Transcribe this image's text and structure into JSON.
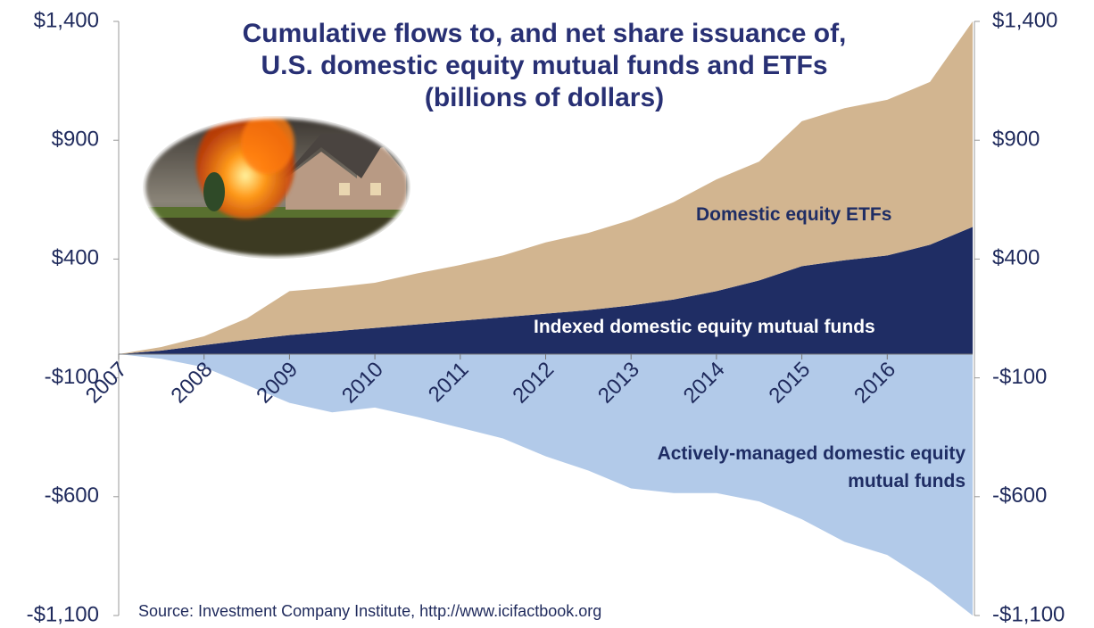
{
  "chart_data": {
    "type": "stacked_area",
    "title": [
      "Cumulative flows to, and net share issuance of,",
      "U.S. domestic equity mutual funds and ETFs",
      "(billions of dollars)"
    ],
    "source": "Source: Investment Company Institute, http://www.icifactbook.org",
    "x": [
      2007,
      2007.5,
      2008,
      2008.5,
      2009,
      2009.5,
      2010,
      2010.5,
      2011,
      2011.5,
      2012,
      2012.5,
      2013,
      2013.5,
      2014,
      2014.5,
      2015,
      2015.5,
      2016,
      2016.5,
      2017
    ],
    "xlim": [
      2007,
      2017
    ],
    "xticks": [
      2007,
      2008,
      2009,
      2010,
      2011,
      2012,
      2013,
      2014,
      2015,
      2016
    ],
    "ylim": [
      -1100,
      1400
    ],
    "yticks": [
      {
        "value": -1100,
        "label": "-$1,100"
      },
      {
        "value": -600,
        "label": "-$600"
      },
      {
        "value": -100,
        "label": "-$100"
      },
      {
        "value": 400,
        "label": "$400"
      },
      {
        "value": 900,
        "label": "$900"
      },
      {
        "value": 1400,
        "label": "$1,400"
      }
    ],
    "y2lim": [
      -1100,
      1400
    ],
    "y2ticks": [
      {
        "value": -1100,
        "label": "-$1,100"
      },
      {
        "value": -600,
        "label": "-$600"
      },
      {
        "value": -100,
        "label": "-$100"
      },
      {
        "value": 400,
        "label": "$400"
      },
      {
        "value": 900,
        "label": "$900"
      },
      {
        "value": 1400,
        "label": "$1,400"
      }
    ],
    "series": [
      {
        "name": "Indexed domestic equity mutual funds",
        "color": "#1f2d64",
        "values": [
          0,
          15,
          38,
          60,
          80,
          95,
          110,
          125,
          140,
          155,
          170,
          185,
          205,
          230,
          265,
          310,
          370,
          395,
          415,
          460,
          535
        ]
      },
      {
        "name": "Domestic equity ETFs",
        "color": "#d2b590",
        "values": [
          0,
          15,
          37,
          90,
          185,
          185,
          190,
          215,
          235,
          260,
          300,
          325,
          360,
          410,
          470,
          500,
          610,
          640,
          655,
          685,
          865
        ]
      },
      {
        "name": "Actively-managed domestic equity mutual funds",
        "color": "#b2cae9",
        "values": [
          0,
          -20,
          -55,
          -130,
          -205,
          -245,
          -225,
          -265,
          -310,
          -355,
          -430,
          -490,
          -565,
          -585,
          -585,
          -620,
          -695,
          -790,
          -845,
          -960,
          -1100
        ]
      }
    ]
  }
}
